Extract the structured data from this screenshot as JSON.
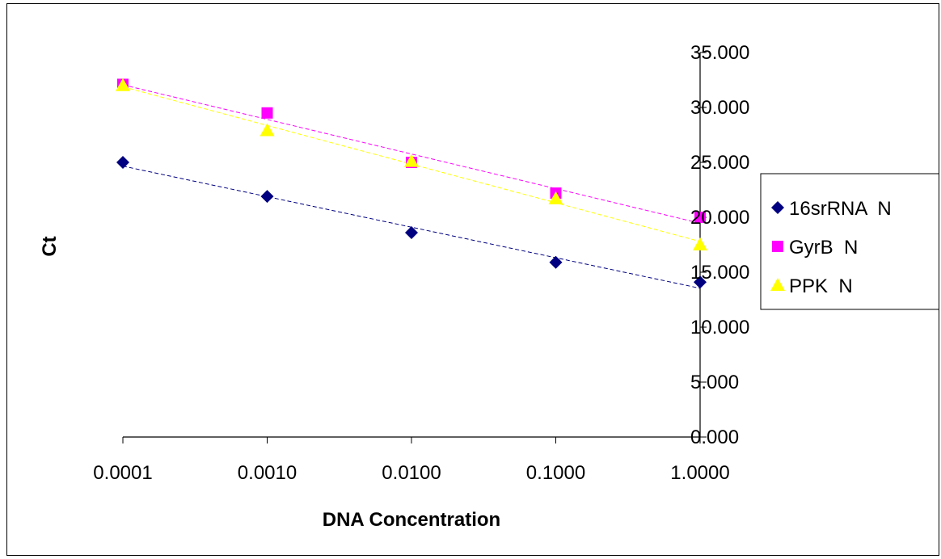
{
  "chart_data": {
    "type": "scatter",
    "title": "",
    "xlabel": "DNA Concentration",
    "ylabel": "Ct",
    "x_tick_labels": [
      "0.0001",
      "0.0010",
      "0.0100",
      "0.1000",
      "1.0000"
    ],
    "y_tick_labels": [
      "0.000",
      "5.000",
      "10.000",
      "15.000",
      "20.000",
      "25.000",
      "30.000",
      "35.000"
    ],
    "ylim": [
      0,
      35
    ],
    "x_scale": "log",
    "grid": false,
    "legend_position": "right",
    "trendlines": "linear, dashed",
    "series": [
      {
        "name": "16srRNA  N",
        "color": "#000080",
        "marker": "diamond",
        "x": [
          0.0001,
          0.001,
          0.01,
          0.1,
          1
        ],
        "y": [
          25.0,
          21.9,
          18.6,
          15.9,
          14.1
        ]
      },
      {
        "name": "GyrB  N",
        "color": "#ff00ff",
        "marker": "square",
        "x": [
          0.0001,
          0.001,
          0.01,
          0.1,
          1
        ],
        "y": [
          32.1,
          29.5,
          25.0,
          22.2,
          20.0
        ]
      },
      {
        "name": "PPK  N",
        "color": "#ffff00",
        "marker": "triangle",
        "x": [
          0.0001,
          0.001,
          0.01,
          0.1,
          1
        ],
        "y": [
          32.0,
          27.9,
          25.1,
          21.7,
          17.5
        ]
      }
    ]
  }
}
